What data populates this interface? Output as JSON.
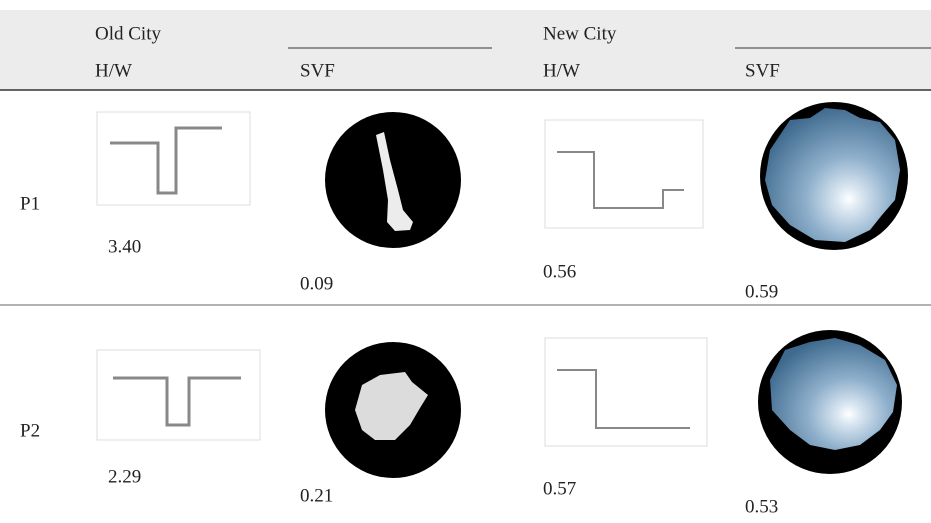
{
  "header": {
    "groups": [
      "Old City",
      "New City"
    ],
    "columns": [
      "H/W",
      "SVF",
      "H/W",
      "SVF"
    ]
  },
  "rows": [
    {
      "label": "P1",
      "values": [
        "3.40",
        "0.09",
        "0.56",
        "0.59"
      ]
    },
    {
      "label": "P2",
      "values": [
        "2.29",
        "0.21",
        "0.57",
        "0.53"
      ]
    }
  ]
}
